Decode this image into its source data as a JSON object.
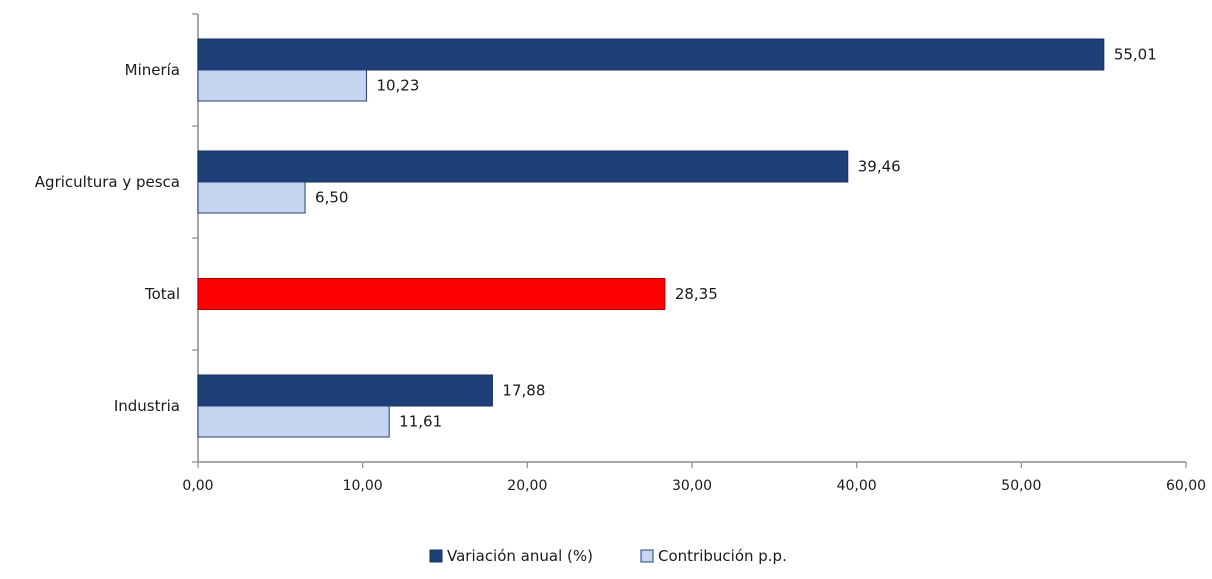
{
  "chart_data": {
    "type": "bar",
    "orientation": "horizontal",
    "categories": [
      "Minería",
      "Agricultura y pesca",
      "Total",
      "Industria"
    ],
    "series": [
      {
        "name": "Variación anual (%)",
        "color": "#1f3f78",
        "values": [
          55.01,
          39.46,
          28.35,
          17.88
        ],
        "labels": [
          "55,01",
          "39,46",
          "28,35",
          "17,88"
        ],
        "point_colors": [
          "#1f3f78",
          "#1f3f78",
          "#ff0000",
          "#1f3f78"
        ]
      },
      {
        "name": "Contribución p.p.",
        "color": "#c6d6f0",
        "values": [
          10.23,
          6.5,
          null,
          11.61
        ],
        "labels": [
          "10,23",
          "6,50",
          "",
          "11,61"
        ]
      }
    ],
    "xlim": [
      0,
      60
    ],
    "x_ticks": [
      0,
      10,
      20,
      30,
      40,
      50,
      60
    ],
    "x_tick_labels": [
      "0,00",
      "10,00",
      "20,00",
      "30,00",
      "40,00",
      "50,00",
      "60,00"
    ],
    "title": "",
    "xlabel": "",
    "ylabel": "",
    "grid": false,
    "legend_position": "bottom-center"
  }
}
